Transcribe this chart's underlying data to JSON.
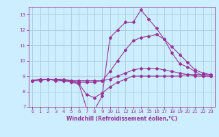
{
  "xlabel": "Windchill (Refroidissement éolien,°C)",
  "bg_color": "#cceeff",
  "line_color": "#993399",
  "grid_color": "#aaccdd",
  "xlim": [
    -0.5,
    23.5
  ],
  "ylim": [
    7,
    13.5
  ],
  "yticks": [
    7,
    8,
    9,
    10,
    11,
    12,
    13
  ],
  "xticks": [
    0,
    1,
    2,
    3,
    4,
    5,
    6,
    7,
    8,
    9,
    10,
    11,
    12,
    13,
    14,
    15,
    16,
    17,
    18,
    19,
    20,
    21,
    22,
    23
  ],
  "curve1_x": [
    0,
    1,
    2,
    3,
    4,
    5,
    6,
    7,
    8,
    9,
    10,
    11,
    12,
    13,
    14,
    15,
    16,
    17,
    18,
    19,
    20,
    21,
    22,
    23
  ],
  "curve1_y": [
    8.7,
    8.8,
    8.8,
    8.8,
    8.7,
    8.7,
    8.5,
    7.8,
    7.6,
    7.9,
    8.3,
    8.6,
    8.8,
    9.0,
    9.0,
    9.0,
    9.0,
    9.0,
    9.0,
    9.0,
    9.1,
    9.1,
    9.1,
    9.1
  ],
  "curve2_x": [
    0,
    1,
    2,
    3,
    4,
    5,
    6,
    7,
    8,
    9,
    10,
    11,
    12,
    13,
    14,
    15,
    16,
    17,
    18,
    19,
    20,
    21,
    22,
    23
  ],
  "curve2_y": [
    8.7,
    8.8,
    8.8,
    8.8,
    8.8,
    8.7,
    8.7,
    8.7,
    8.7,
    8.7,
    8.8,
    9.0,
    9.2,
    9.4,
    9.5,
    9.5,
    9.5,
    9.4,
    9.3,
    9.2,
    9.1,
    9.0,
    9.0,
    9.0
  ],
  "curve3_x": [
    0,
    1,
    2,
    3,
    4,
    5,
    6,
    7,
    8,
    9,
    10,
    11,
    12,
    13,
    14,
    15,
    16,
    17,
    18,
    19,
    20,
    21,
    22,
    23
  ],
  "curve3_y": [
    8.7,
    8.7,
    8.8,
    8.8,
    8.7,
    8.7,
    8.6,
    8.6,
    8.6,
    8.7,
    9.3,
    10.0,
    10.7,
    11.3,
    11.5,
    11.6,
    11.7,
    11.4,
    10.9,
    10.4,
    9.9,
    9.4,
    9.2,
    9.1
  ],
  "curve4_x": [
    0,
    1,
    2,
    3,
    4,
    5,
    6,
    7,
    8,
    9,
    10,
    11,
    12,
    13,
    14,
    15,
    16,
    17,
    18,
    19,
    20,
    21,
    22,
    23
  ],
  "curve4_y": [
    8.7,
    8.8,
    8.8,
    8.7,
    8.7,
    8.6,
    8.5,
    6.9,
    6.8,
    7.7,
    11.5,
    12.0,
    12.5,
    12.5,
    13.3,
    12.7,
    12.1,
    11.4,
    10.5,
    9.8,
    9.6,
    9.3,
    9.0,
    9.0
  ],
  "marker_size": 2.0,
  "line_width": 0.8,
  "tick_fontsize": 5.0,
  "xlabel_fontsize": 5.5
}
